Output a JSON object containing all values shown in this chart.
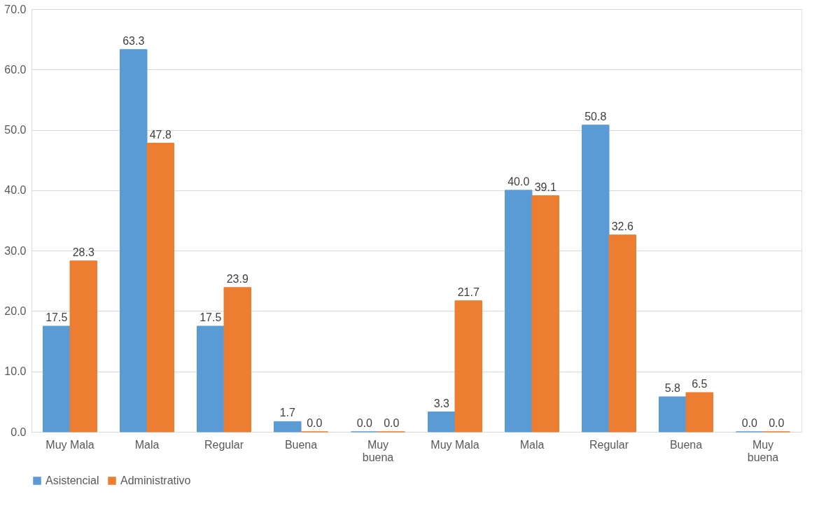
{
  "chart_data": {
    "type": "bar",
    "categories": [
      "Muy Mala",
      "Mala",
      "Regular",
      "Buena",
      "Muy buena",
      "Muy Mala",
      "Mala",
      "Regular",
      "Buena",
      "Muy buena"
    ],
    "series": [
      {
        "name": "Asistencial",
        "color": "#5b9bd5",
        "values": [
          17.5,
          63.3,
          17.5,
          1.7,
          0.0,
          3.3,
          40.0,
          50.8,
          5.8,
          0.0
        ],
        "value_labels": [
          "17.5",
          "63.3",
          "17.5",
          "1.7",
          "0.0",
          "3.3",
          "40.0",
          "50.8",
          "5.8",
          "0.0"
        ]
      },
      {
        "name": "Administrativo",
        "color": "#ed7d31",
        "values": [
          28.3,
          47.8,
          23.9,
          0.0,
          0.0,
          21.7,
          39.1,
          32.6,
          6.5,
          0.0
        ],
        "value_labels": [
          "28.3",
          "47.8",
          "23.9",
          "0.0",
          "0.0",
          "21.7",
          "39.1",
          "32.6",
          "6.5",
          "0.0"
        ]
      }
    ],
    "ylim": [
      0,
      70
    ],
    "yticks": [
      {
        "value": 0,
        "label": "0.0"
      },
      {
        "value": 10,
        "label": "10.0"
      },
      {
        "value": 20,
        "label": "20.0"
      },
      {
        "value": 30,
        "label": "30.0"
      },
      {
        "value": 40,
        "label": "40.0"
      },
      {
        "value": 50,
        "label": "50.0"
      },
      {
        "value": 60,
        "label": "60.0"
      },
      {
        "value": 70,
        "label": "70.0"
      }
    ],
    "grid": "y",
    "legend": "bottom"
  }
}
